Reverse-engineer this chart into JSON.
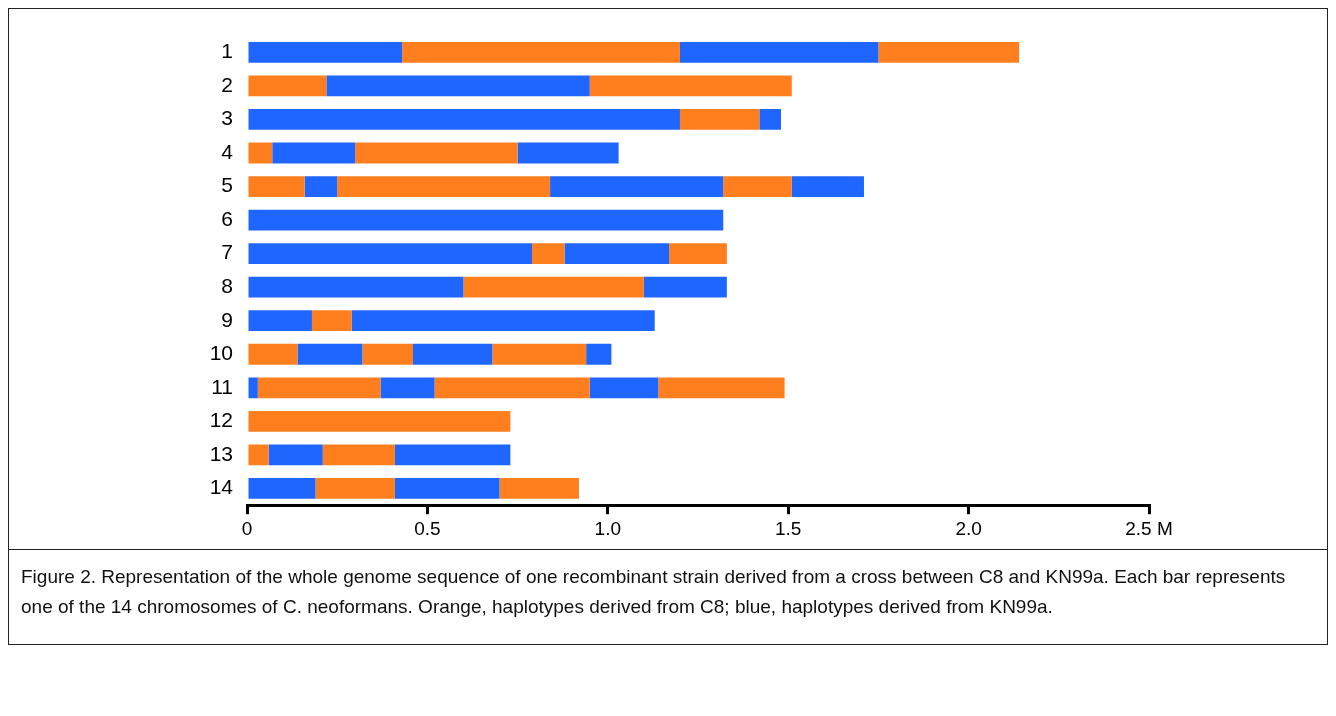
{
  "chart_data": {
    "type": "bar",
    "orientation": "horizontal",
    "stacked": true,
    "categories": [
      "1",
      "2",
      "3",
      "4",
      "5",
      "6",
      "7",
      "8",
      "9",
      "10",
      "11",
      "12",
      "13",
      "14"
    ],
    "series": [
      {
        "colors": [
          "#1f66ff",
          "#ff7f1e",
          "#1f66ff",
          "#ff7f1e",
          "#ff7f1e",
          "#1f66ff",
          "#1f66ff",
          "#1f66ff",
          "#1f66ff",
          "#ff7f1e",
          "#1f66ff",
          "#ff7f1e",
          "#ff7f1e",
          "#1f66ff"
        ],
        "values": [
          0.43,
          0.22,
          1.2,
          0.07,
          0.16,
          1.32,
          0.79,
          0.6,
          0.18,
          0.14,
          0.03,
          0.73,
          0.06,
          0.19
        ]
      },
      {
        "colors": [
          "#ff7f1e",
          "#1f66ff",
          "#ff7f1e",
          "#1f66ff",
          "#1f66ff",
          null,
          "#ff7f1e",
          "#ff7f1e",
          "#ff7f1e",
          "#1f66ff",
          "#ff7f1e",
          null,
          "#1f66ff",
          "#ff7f1e"
        ],
        "values": [
          0.77,
          0.73,
          0.22,
          0.23,
          0.09,
          null,
          0.09,
          0.5,
          0.11,
          0.18,
          0.34,
          null,
          0.15,
          0.22
        ]
      },
      {
        "colors": [
          "#1f66ff",
          "#ff7f1e",
          "#1f66ff",
          "#ff7f1e",
          "#ff7f1e",
          null,
          "#1f66ff",
          "#1f66ff",
          "#1f66ff",
          "#ff7f1e",
          "#1f66ff",
          null,
          "#ff7f1e",
          "#1f66ff"
        ],
        "values": [
          0.55,
          0.56,
          0.06,
          0.45,
          0.59,
          null,
          0.29,
          0.23,
          0.84,
          0.14,
          0.15,
          null,
          0.2,
          0.29
        ]
      },
      {
        "colors": [
          "#ff7f1e",
          null,
          null,
          "#1f66ff",
          "#1f66ff",
          null,
          "#ff7f1e",
          null,
          null,
          "#1f66ff",
          "#ff7f1e",
          null,
          "#1f66ff",
          "#ff7f1e"
        ],
        "values": [
          0.39,
          null,
          null,
          0.28,
          0.48,
          null,
          0.16,
          null,
          null,
          0.22,
          0.43,
          null,
          0.32,
          0.22
        ]
      },
      {
        "colors": [
          null,
          null,
          null,
          null,
          "#ff7f1e",
          null,
          null,
          null,
          null,
          "#ff7f1e",
          "#1f66ff",
          null,
          null,
          null
        ],
        "values": [
          null,
          null,
          null,
          null,
          0.19,
          null,
          null,
          null,
          null,
          0.26,
          0.19,
          null,
          null,
          null
        ]
      },
      {
        "colors": [
          null,
          null,
          null,
          null,
          "#1f66ff",
          null,
          null,
          null,
          null,
          "#1f66ff",
          "#ff7f1e",
          null,
          null,
          null
        ],
        "values": [
          null,
          null,
          null,
          null,
          0.2,
          null,
          null,
          null,
          null,
          0.07,
          0.35,
          null,
          null,
          null
        ]
      }
    ],
    "xlim": [
      0,
      2.5
    ],
    "xticks": [
      0,
      {
        "value": 0.5,
        "label": "0.5"
      },
      {
        "value": 1,
        "label": "1.0"
      },
      {
        "value": 1.5,
        "label": "1.5"
      },
      {
        "value": 2,
        "label": "2.0"
      },
      {
        "value": 2.5,
        "label": "2.5 M"
      }
    ],
    "grid": false,
    "legend": false,
    "annotations": [
      "Figure 2. Representation of the whole genome sequence of one recombinant strain derived from a cross between C8 and KN99a. Each bar represents one of the 14 chromosomes of C. neoformans. Orange, haplotypes derived from C8; blue, haplotypes derived from KN99a."
    ]
  }
}
